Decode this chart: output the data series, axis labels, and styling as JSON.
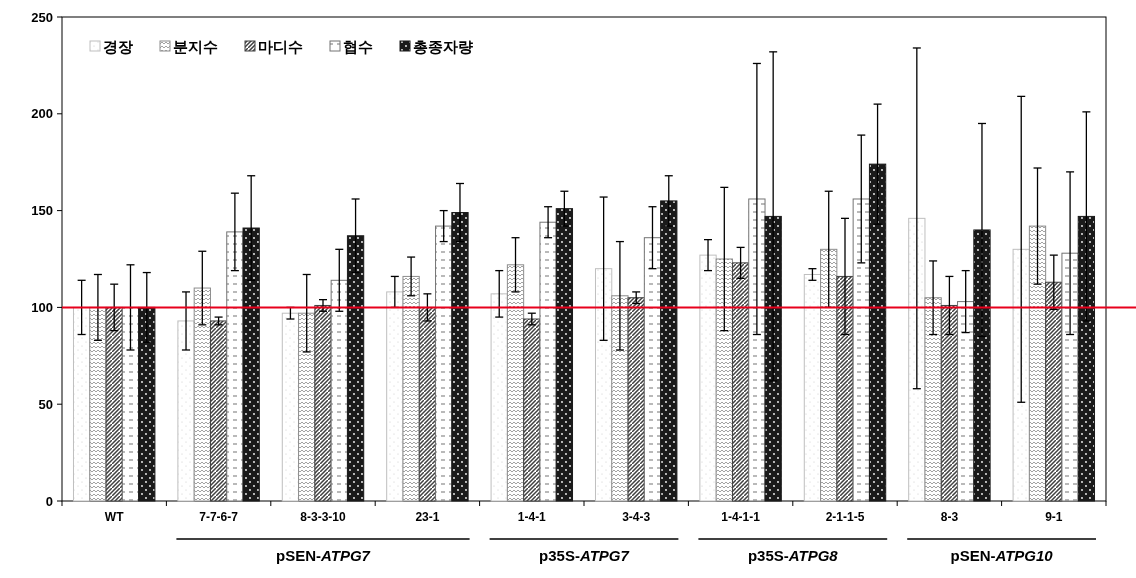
{
  "chart_data": {
    "type": "bar",
    "categories": [
      "WT",
      "7-7-6-7",
      "8-3-3-10",
      "23-1",
      "1-4-1",
      "3-4-3",
      "1-4-1-1",
      "2-1-1-5",
      "8-3",
      "9-1"
    ],
    "series": [
      {
        "name": "경장",
        "color": "#bfbfbf",
        "values": [
          100,
          93,
          97,
          108,
          107,
          120,
          127,
          117,
          146,
          130
        ],
        "errors": [
          14,
          15,
          3,
          8,
          12,
          37,
          8,
          3,
          88,
          79
        ]
      },
      {
        "name": "분지수",
        "color": "#8c8c8c",
        "values": [
          100,
          110,
          97,
          116,
          122,
          106,
          125,
          130,
          105,
          142
        ],
        "errors": [
          17,
          19,
          20,
          10,
          14,
          28,
          37,
          30,
          19,
          30
        ]
      },
      {
        "name": "마디수",
        "color": "#404040",
        "values": [
          100,
          93,
          101,
          100,
          94,
          105,
          123,
          116,
          101,
          113
        ],
        "errors": [
          12,
          2,
          3,
          7,
          3,
          3,
          8,
          30,
          15,
          14
        ]
      },
      {
        "name": "협수",
        "color": "#737373",
        "values": [
          100,
          139,
          114,
          142,
          144,
          136,
          156,
          156,
          103,
          128
        ],
        "errors": [
          22,
          20,
          16,
          8,
          8,
          16,
          70,
          33,
          16,
          42
        ]
      },
      {
        "name": "총종자량",
        "color": "#1a1a1a",
        "values": [
          100,
          141,
          137,
          149,
          151,
          155,
          147,
          174,
          140,
          147
        ],
        "errors": [
          18,
          27,
          19,
          15,
          9,
          13,
          85,
          31,
          55,
          54
        ]
      }
    ],
    "ylim": [
      0,
      250
    ],
    "yticks": [
      0,
      50,
      100,
      150,
      200,
      250
    ],
    "grid": false,
    "legend": "top left",
    "ref_lines": [
      {
        "axis": "y",
        "value": 100,
        "color": "#e8001c"
      }
    ],
    "annotations": [
      "pSEN-ATPG7",
      "p35S-ATPG7",
      "p35S-ATPG8",
      "pSEN-ATPG10"
    ]
  }
}
